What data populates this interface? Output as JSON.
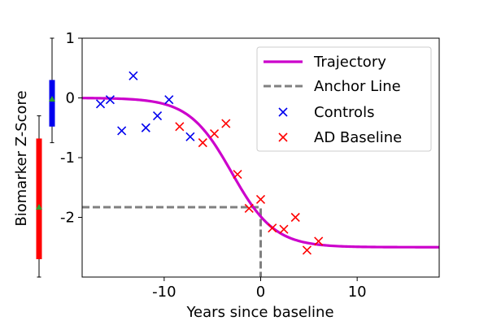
{
  "chart_data": {
    "type": "line",
    "xlabel": "Years since baseline",
    "ylabel": "Biomarker Z-Score",
    "xlim": [
      -18.5,
      18.5
    ],
    "ylim": [
      -3.0,
      1.0
    ],
    "xticks": [
      -10,
      0,
      10
    ],
    "xtick_labels": [
      "-10",
      "0",
      "10"
    ],
    "yticks": [
      1,
      0,
      -1,
      -2
    ],
    "ytick_labels": [
      "1",
      "0",
      "-1",
      "-2"
    ],
    "grid": false,
    "legend": {
      "position": "top-right",
      "entries": [
        "Trajectory",
        "Anchor Line",
        "Controls",
        "AD Baseline"
      ]
    },
    "series": [
      {
        "name": "Trajectory",
        "kind": "line",
        "color": "#cc00cc",
        "model": "logistic",
        "upper": 0.0,
        "lower": -2.5,
        "midpoint": -3.0,
        "slope": 0.45
      },
      {
        "name": "Anchor Line",
        "kind": "dashed-line",
        "color": "#808080",
        "points": [
          [
            -18.5,
            -1.83
          ],
          [
            0,
            -1.83
          ],
          [
            0,
            -3.0
          ]
        ]
      },
      {
        "name": "Controls",
        "kind": "scatter",
        "marker": "x",
        "color": "#0000ee",
        "points": [
          [
            -16.6,
            -0.1
          ],
          [
            -15.6,
            -0.03
          ],
          [
            -14.4,
            -0.55
          ],
          [
            -13.2,
            0.37
          ],
          [
            -11.9,
            -0.5
          ],
          [
            -10.7,
            -0.3
          ],
          [
            -9.5,
            -0.03
          ],
          [
            -7.3,
            -0.65
          ]
        ]
      },
      {
        "name": "AD Baseline",
        "kind": "scatter",
        "marker": "x",
        "color": "#ff0000",
        "points": [
          [
            -8.4,
            -0.48
          ],
          [
            -6.0,
            -0.75
          ],
          [
            -4.8,
            -0.6
          ],
          [
            -3.6,
            -0.43
          ],
          [
            -2.4,
            -1.28
          ],
          [
            -1.2,
            -1.85
          ],
          [
            0.0,
            -1.7
          ],
          [
            1.2,
            -2.18
          ],
          [
            2.4,
            -2.2
          ],
          [
            3.6,
            -2.0
          ],
          [
            4.8,
            -2.55
          ],
          [
            6.0,
            -2.4
          ]
        ]
      }
    ],
    "side_boxes": [
      {
        "color": "#0000ee",
        "whisker_low": -0.75,
        "whisker_high": 1.0,
        "box_low": -0.48,
        "box_high": 0.3,
        "median": -0.02
      },
      {
        "color": "#ff0000",
        "whisker_low": -3.0,
        "whisker_high": -0.3,
        "box_low": -2.7,
        "box_high": -0.68,
        "median": -1.83
      }
    ]
  }
}
